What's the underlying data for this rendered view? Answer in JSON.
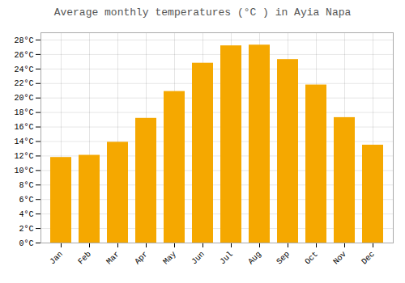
{
  "chart_data": {
    "type": "bar",
    "title": "Average monthly temperatures (°C ) in Ayia Napa",
    "categories": [
      "Jan",
      "Feb",
      "Mar",
      "Apr",
      "May",
      "Jun",
      "Jul",
      "Aug",
      "Sep",
      "Oct",
      "Nov",
      "Dec"
    ],
    "values": [
      11.8,
      12.1,
      13.9,
      17.2,
      20.9,
      24.8,
      27.2,
      27.3,
      25.3,
      21.8,
      17.3,
      13.5
    ],
    "color": "#F5A800",
    "ylim": [
      0,
      29
    ],
    "yticks": [
      {
        "value": 0,
        "label": "0°C"
      },
      {
        "value": 2,
        "label": "2°C"
      },
      {
        "value": 4,
        "label": "4°C"
      },
      {
        "value": 6,
        "label": "6°C"
      },
      {
        "value": 8,
        "label": "8°C"
      },
      {
        "value": 10,
        "label": "10°C"
      },
      {
        "value": 12,
        "label": "12°C"
      },
      {
        "value": 14,
        "label": "14°C"
      },
      {
        "value": 16,
        "label": "16°C"
      },
      {
        "value": 18,
        "label": "18°C"
      },
      {
        "value": 20,
        "label": "20°C"
      },
      {
        "value": 22,
        "label": "22°C"
      },
      {
        "value": 24,
        "label": "24°C"
      },
      {
        "value": 26,
        "label": "26°C"
      },
      {
        "value": 28,
        "label": "28°C"
      }
    ],
    "grid": true
  }
}
